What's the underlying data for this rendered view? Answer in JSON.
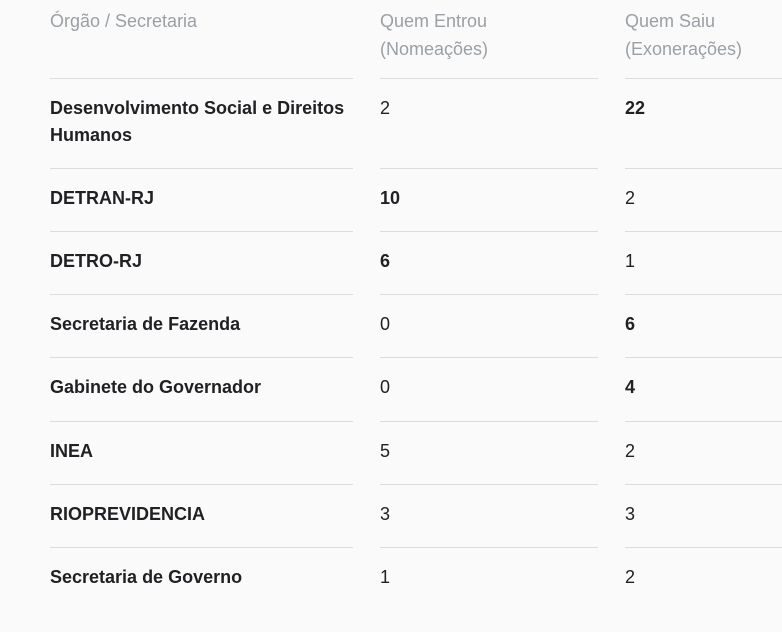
{
  "table": {
    "headers": {
      "organ": "Órgão / Secretaria",
      "in_line1": "Quem Entrou",
      "in_line2": "(Nomeações)",
      "out_line1": "Quem Saiu",
      "out_line2": "(Exonerações)"
    },
    "rows": [
      {
        "organ": "Desenvolvimento Social e Direitos Humanos",
        "in": "2",
        "out": "22",
        "in_bold": false,
        "out_bold": true
      },
      {
        "organ": "DETRAN-RJ",
        "in": "10",
        "out": "2",
        "in_bold": true,
        "out_bold": false
      },
      {
        "organ": "DETRO-RJ",
        "in": "6",
        "out": "1",
        "in_bold": true,
        "out_bold": false
      },
      {
        "organ": "Secretaria de Fazenda",
        "in": "0",
        "out": "6",
        "in_bold": false,
        "out_bold": true
      },
      {
        "organ": "Gabinete do Governador",
        "in": "0",
        "out": "4",
        "in_bold": false,
        "out_bold": true
      },
      {
        "organ": "INEA",
        "in": "5",
        "out": "2",
        "in_bold": false,
        "out_bold": false
      },
      {
        "organ": "RIOPREVIDENCIA",
        "in": "3",
        "out": "3",
        "in_bold": false,
        "out_bold": false
      },
      {
        "organ": "Secretaria de Governo",
        "in": "1",
        "out": "2",
        "in_bold": false,
        "out_bold": false
      }
    ]
  }
}
